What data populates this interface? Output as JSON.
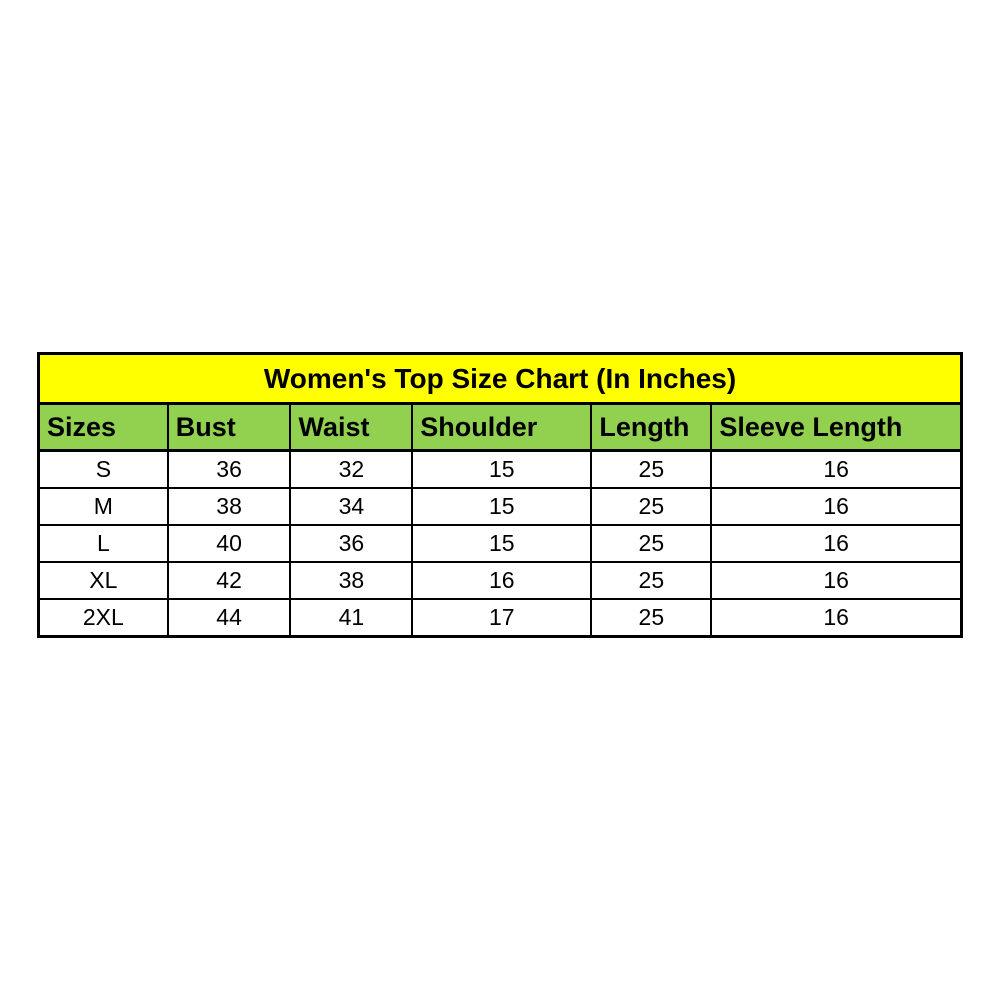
{
  "chart_data": {
    "type": "table",
    "title": "Women's Top Size Chart (In Inches)",
    "columns": [
      "Sizes",
      "Bust",
      "Waist",
      "Shoulder",
      "Length",
      "Sleeve Length"
    ],
    "rows": [
      [
        "S",
        "36",
        "32",
        "15",
        "25",
        "16"
      ],
      [
        "M",
        "38",
        "34",
        "15",
        "25",
        "16"
      ],
      [
        "L",
        "40",
        "36",
        "15",
        "25",
        "16"
      ],
      [
        "XL",
        "42",
        "38",
        "16",
        "25",
        "16"
      ],
      [
        "2XL",
        "44",
        "41",
        "17",
        "25",
        "16"
      ]
    ],
    "layout": {
      "legend": "none",
      "grid": "full-borders"
    }
  },
  "colors": {
    "title_background": "#FFFF00",
    "header_background": "#92D050",
    "body_background": "#FFFFFF",
    "border": "#000000",
    "text": "#000000"
  }
}
